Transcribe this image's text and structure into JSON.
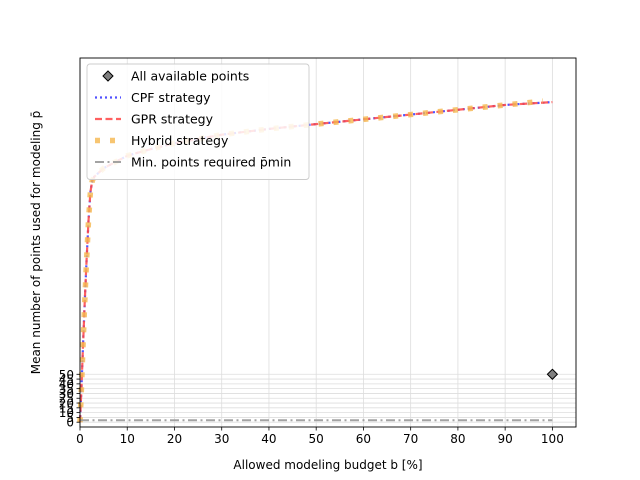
{
  "chart_data": {
    "type": "line",
    "xlabel": "Allowed modeling budget b [%]",
    "ylabel": "Mean number of points used for modeling p̄",
    "xlim": [
      0,
      105
    ],
    "ylim": [
      -5,
      380
    ],
    "x_ticks": [
      0,
      10,
      20,
      30,
      40,
      50,
      60,
      70,
      80,
      90,
      100
    ],
    "y_ticks": [
      0,
      5,
      10,
      15,
      20,
      25,
      30,
      35,
      40,
      45,
      50
    ],
    "y_tick_labels": [
      "0",
      "5",
      "10",
      "15",
      "20",
      "25",
      "30",
      "35",
      "40",
      "45",
      "50"
    ],
    "grid": true,
    "legend_position": "top-left",
    "legend": [
      {
        "label": "All available points",
        "style": "marker-diamond",
        "color": "#7f7f7f"
      },
      {
        "label": "CPF strategy",
        "style": "dotted",
        "color": "#3333ff"
      },
      {
        "label": "GPR strategy",
        "style": "dashed",
        "color": "#ff4444"
      },
      {
        "label": "Hybrid strategy",
        "style": "square-dots",
        "color": "#f5b74e"
      },
      {
        "label": "Min. points required p̄min",
        "style": "dash-dot",
        "color": "#999999"
      }
    ],
    "series": [
      {
        "name": "All available points",
        "x": [
          100
        ],
        "y": [
          50
        ]
      },
      {
        "name": "CPF strategy",
        "x": [
          0,
          0.3,
          0.6,
          1.0,
          1.4,
          1.8,
          2.2,
          2.6,
          3,
          5,
          10,
          15,
          20,
          30,
          40,
          50,
          60,
          70,
          80,
          90,
          100
        ],
        "y": [
          0,
          35,
          75,
          125,
          170,
          210,
          240,
          252,
          256,
          265,
          278,
          285,
          291,
          300,
          306,
          311,
          316,
          321,
          326,
          331,
          334
        ]
      },
      {
        "name": "GPR strategy",
        "x": [
          0,
          0.3,
          0.6,
          1.0,
          1.4,
          1.8,
          2.2,
          2.6,
          3,
          5,
          10,
          15,
          20,
          30,
          40,
          50,
          60,
          70,
          80,
          90,
          100
        ],
        "y": [
          0,
          35,
          75,
          125,
          170,
          210,
          240,
          252,
          256,
          265,
          278,
          285,
          291,
          300,
          306,
          311,
          316,
          321,
          326,
          331,
          334
        ]
      },
      {
        "name": "Hybrid strategy",
        "x": [
          0,
          0.3,
          0.6,
          1.0,
          1.4,
          1.8,
          2.2,
          2.6,
          3,
          5,
          10,
          15,
          20,
          30,
          40,
          50,
          60,
          70,
          80,
          90,
          98
        ],
        "y": [
          0,
          35,
          75,
          125,
          170,
          210,
          240,
          252,
          256,
          265,
          278,
          285,
          291,
          300,
          306,
          311,
          316,
          321,
          326,
          331,
          335
        ]
      },
      {
        "name": "Min. points required p̄min",
        "x": [
          0,
          100
        ],
        "y": [
          2,
          2
        ]
      }
    ]
  }
}
